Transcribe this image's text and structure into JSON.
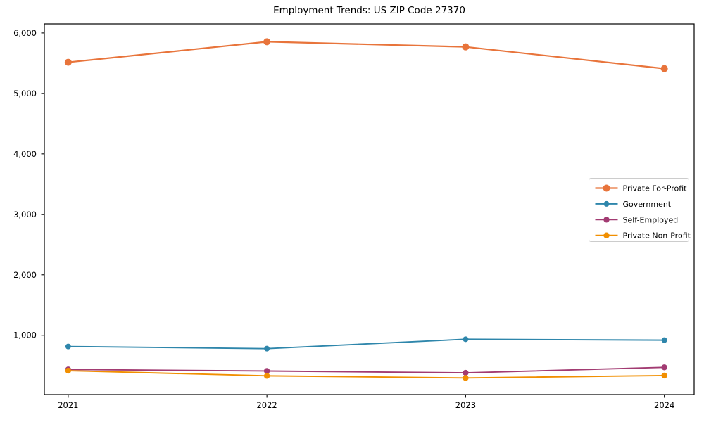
{
  "figure": {
    "background_color": "#ffffff",
    "frame_color": "#000000",
    "legend_border_color": "#cccccc",
    "legend_background_color": "#ffffff"
  },
  "chart_data": {
    "type": "line",
    "title": "Employment Trends: US ZIP Code 27370",
    "x": [
      2021,
      2022,
      2023,
      2024
    ],
    "x_tick_labels": [
      "2021",
      "2022",
      "2023",
      "2024"
    ],
    "y_tick_values": [
      1000,
      2000,
      3000,
      4000,
      5000,
      6000
    ],
    "y_tick_labels": [
      "1,000",
      "2,000",
      "3,000",
      "4,000",
      "5,000",
      "6,000"
    ],
    "xlim": [
      2020.88,
      2024.15
    ],
    "ylim": [
      20,
      6150
    ],
    "grid": false,
    "legend_position": "center-right",
    "series": [
      {
        "name": "Private For-Profit",
        "color": "#E8743B",
        "values": [
          5515,
          5855,
          5770,
          5410
        ]
      },
      {
        "name": "Government",
        "color": "#2E86AB",
        "values": [
          815,
          780,
          935,
          920
        ]
      },
      {
        "name": "Self-Employed",
        "color": "#A23B72",
        "values": [
          435,
          410,
          380,
          470
        ]
      },
      {
        "name": "Private Non-Profit",
        "color": "#F18F01",
        "values": [
          415,
          330,
          295,
          335
        ]
      }
    ]
  }
}
